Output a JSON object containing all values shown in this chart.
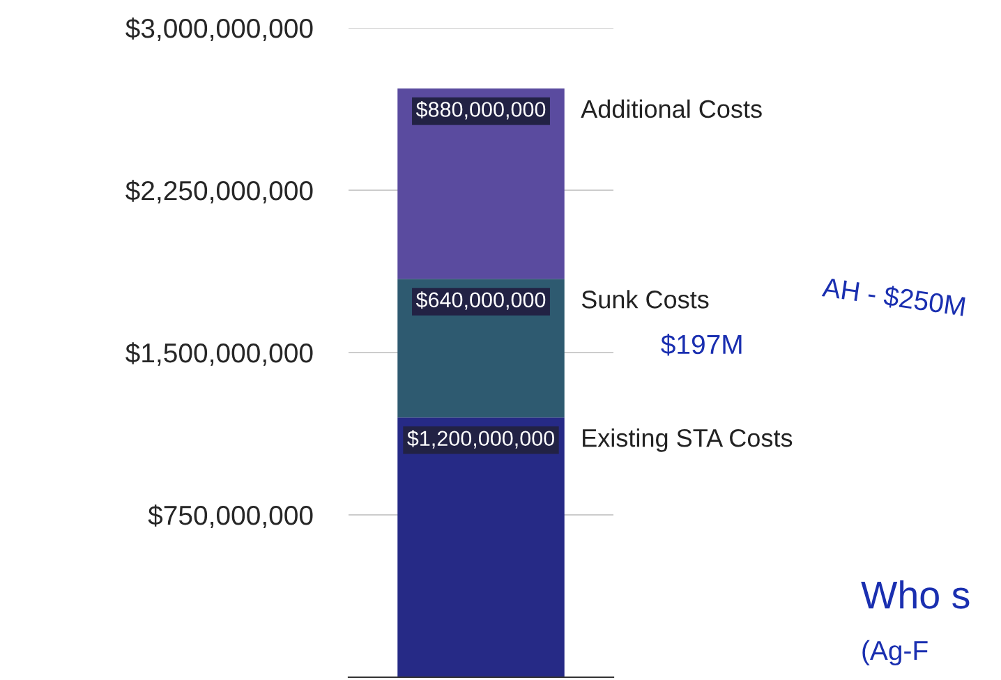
{
  "chart_data": {
    "type": "bar",
    "stacked": true,
    "categories": [
      null
    ],
    "series": [
      {
        "name": "Existing STA Costs",
        "color": "#262a86",
        "values": [
          1200000000
        ],
        "value_labels": [
          "$1,200,000,000"
        ]
      },
      {
        "name": "Sunk Costs",
        "color": "#2e5a70",
        "values": [
          640000000
        ],
        "value_labels": [
          "$640,000,000"
        ]
      },
      {
        "name": "Additional Costs",
        "color": "#5a4b9f",
        "values": [
          880000000
        ],
        "value_labels": [
          "$880,000,000"
        ]
      }
    ],
    "ylim": [
      0,
      3000000000
    ],
    "yticks": [
      {
        "value": 750000000,
        "label": "$750,000,000"
      },
      {
        "value": 1500000000,
        "label": "$1,500,000,000"
      },
      {
        "value": 2250000000,
        "label": "$2,250,000,000"
      },
      {
        "value": 3000000000,
        "label": "$3,000,000,000"
      }
    ],
    "grid": "y",
    "legend": false,
    "annotations": [
      "AH - $250M",
      "$197M",
      "Who s",
      "(Ag-F"
    ]
  }
}
